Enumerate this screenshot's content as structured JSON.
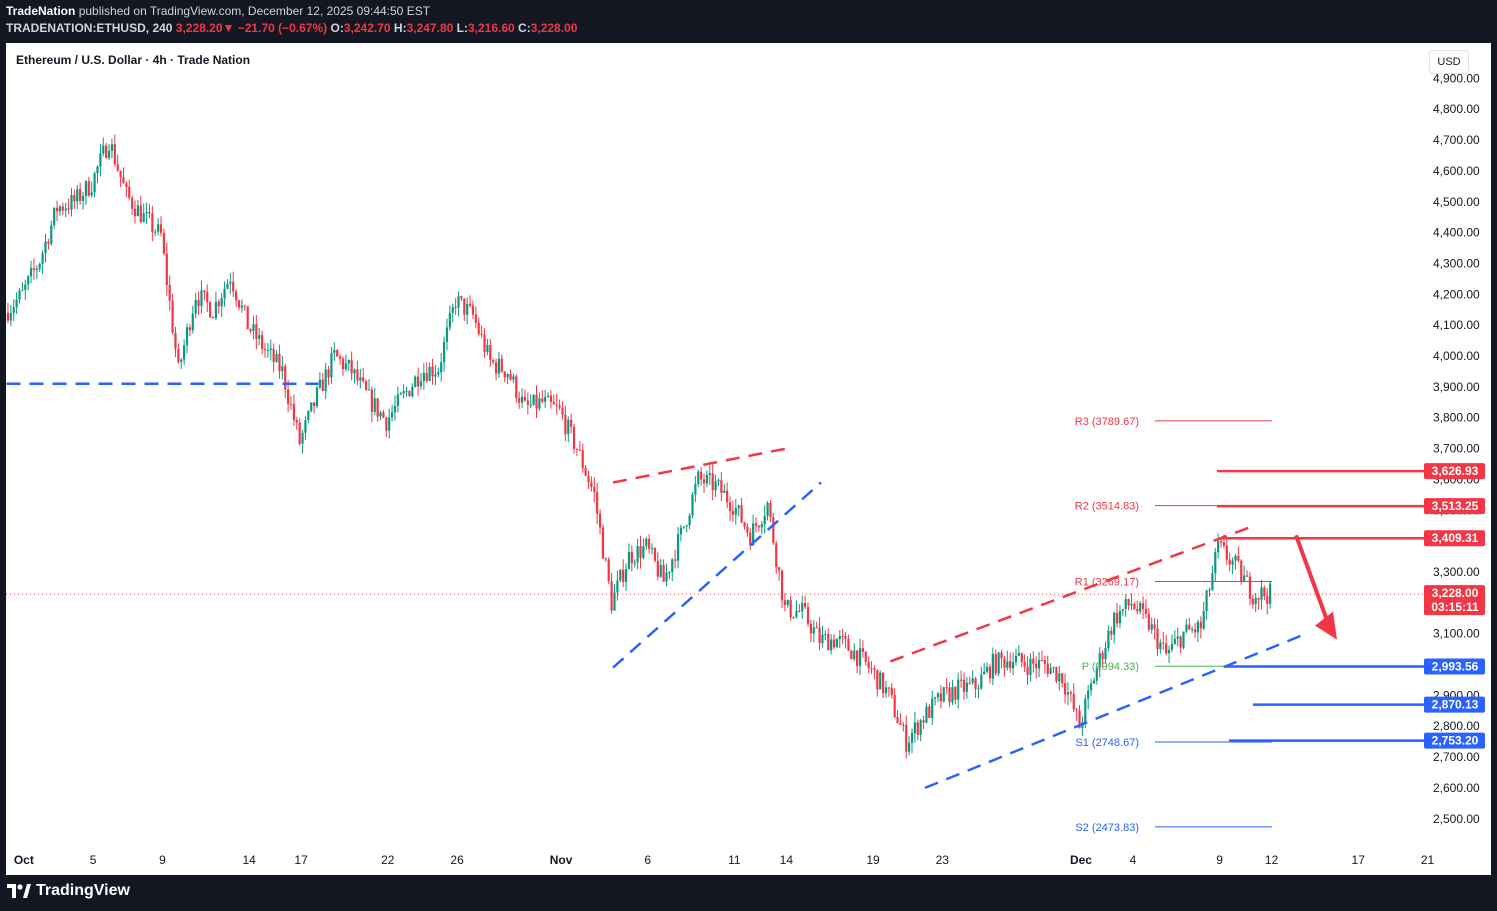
{
  "header": {
    "publisher": "TradeNation",
    "published_on": " published on TradingView.com, December 12, 2025 09:44:50 EST",
    "symbol_tf": "TRADENATION:ETHUSD, 240 ",
    "last": "3,228.20",
    "change": "−21.70 (−0.67%)",
    "o_label": "O:",
    "o": "3,242.70",
    "h_label": "H:",
    "h": "3,247.80",
    "l_label": "L:",
    "l": "3,216.60",
    "c_label": "C:",
    "c": "3,228.00"
  },
  "chart_title": "Ethereum / U.S. Dollar · 4h · Trade Nation",
  "currency_button": "USD",
  "brand": "TradingView",
  "colors": {
    "up": "#089981",
    "down": "#f23645",
    "bear_line": "#f23645",
    "bull_line": "#2962ff",
    "pivot_res": "#f23645",
    "pivot_sup": "#2962ff",
    "pivot_p": "#4caf50",
    "last_price": "#f23645",
    "arrow": "#f23645"
  },
  "chart_data": {
    "type": "candlestick",
    "symbol": "ETHUSD",
    "interval": "4h",
    "ylim": [
      2450,
      4950
    ],
    "y_ticks": [
      "2,500.00",
      "2,600.00",
      "2,700.00",
      "2,800.00",
      "2,900.00",
      "3,000.00",
      "3,100.00",
      "3,200.00",
      "3,300.00",
      "3,400.00",
      "3,500.00",
      "3,600.00",
      "3,700.00",
      "3,800.00",
      "3,900.00",
      "4,000.00",
      "4,100.00",
      "4,200.00",
      "4,300.00",
      "4,400.00",
      "4,500.00",
      "4,600.00",
      "4,700.00",
      "4,800.00",
      "4,900.00"
    ],
    "x_ticks": [
      {
        "label": "Oct",
        "date": "2025-10-01",
        "bold": true
      },
      {
        "label": "5",
        "date": "2025-10-05"
      },
      {
        "label": "9",
        "date": "2025-10-09"
      },
      {
        "label": "14",
        "date": "2025-10-14"
      },
      {
        "label": "17",
        "date": "2025-10-17"
      },
      {
        "label": "22",
        "date": "2025-10-22"
      },
      {
        "label": "26",
        "date": "2025-10-26"
      },
      {
        "label": "Nov",
        "date": "2025-11-01",
        "bold": true
      },
      {
        "label": "6",
        "date": "2025-11-06"
      },
      {
        "label": "11",
        "date": "2025-11-11"
      },
      {
        "label": "14",
        "date": "2025-11-14"
      },
      {
        "label": "19",
        "date": "2025-11-19"
      },
      {
        "label": "23",
        "date": "2025-11-23"
      },
      {
        "label": "Dec",
        "date": "2025-12-01",
        "bold": true
      },
      {
        "label": "4",
        "date": "2025-12-04"
      },
      {
        "label": "9",
        "date": "2025-12-09"
      },
      {
        "label": "12",
        "date": "2025-12-12"
      },
      {
        "label": "17",
        "date": "2025-12-17"
      },
      {
        "label": "21",
        "date": "2025-12-21"
      }
    ],
    "price_path": [
      [
        "2025-09-30",
        4140
      ],
      [
        "2025-10-01",
        4200
      ],
      [
        "2025-10-02",
        4310
      ],
      [
        "2025-10-03",
        4480
      ],
      [
        "2025-10-04",
        4500
      ],
      [
        "2025-10-05",
        4560
      ],
      [
        "2025-10-06",
        4700
      ],
      [
        "2025-10-07",
        4520
      ],
      [
        "2025-10-08",
        4450
      ],
      [
        "2025-10-09",
        4390
      ],
      [
        "2025-10-10",
        3950
      ],
      [
        "2025-10-11",
        4200
      ],
      [
        "2025-10-12",
        4150
      ],
      [
        "2025-10-13",
        4260
      ],
      [
        "2025-10-14",
        4100
      ],
      [
        "2025-10-15",
        4020
      ],
      [
        "2025-10-16",
        3950
      ],
      [
        "2025-10-17",
        3720
      ],
      [
        "2025-10-18",
        3870
      ],
      [
        "2025-10-19",
        4000
      ],
      [
        "2025-10-20",
        3950
      ],
      [
        "2025-10-21",
        3860
      ],
      [
        "2025-10-22",
        3790
      ],
      [
        "2025-10-23",
        3870
      ],
      [
        "2025-10-24",
        3950
      ],
      [
        "2025-10-25",
        3960
      ],
      [
        "2025-10-26",
        4180
      ],
      [
        "2025-10-27",
        4130
      ],
      [
        "2025-10-28",
        3980
      ],
      [
        "2025-10-29",
        3950
      ],
      [
        "2025-10-30",
        3830
      ],
      [
        "2025-10-31",
        3850
      ],
      [
        "2025-11-01",
        3820
      ],
      [
        "2025-11-02",
        3700
      ],
      [
        "2025-11-03",
        3550
      ],
      [
        "2025-11-04",
        3200
      ],
      [
        "2025-11-05",
        3350
      ],
      [
        "2025-11-06",
        3380
      ],
      [
        "2025-11-07",
        3270
      ],
      [
        "2025-11-08",
        3420
      ],
      [
        "2025-11-09",
        3600
      ],
      [
        "2025-11-10",
        3580
      ],
      [
        "2025-11-11",
        3520
      ],
      [
        "2025-11-12",
        3420
      ],
      [
        "2025-11-13",
        3520
      ],
      [
        "2025-11-14",
        3180
      ],
      [
        "2025-11-15",
        3170
      ],
      [
        "2025-11-16",
        3080
      ],
      [
        "2025-11-17",
        3080
      ],
      [
        "2025-11-18",
        3040
      ],
      [
        "2025-11-19",
        2980
      ],
      [
        "2025-11-20",
        2900
      ],
      [
        "2025-11-21",
        2750
      ],
      [
        "2025-11-22",
        2830
      ],
      [
        "2025-11-23",
        2890
      ],
      [
        "2025-11-24",
        2920
      ],
      [
        "2025-11-25",
        2930
      ],
      [
        "2025-11-26",
        3000
      ],
      [
        "2025-11-27",
        3020
      ],
      [
        "2025-11-28",
        3000
      ],
      [
        "2025-11-29",
        3000
      ],
      [
        "2025-11-30",
        2960
      ],
      [
        "2025-12-01",
        2800
      ],
      [
        "2025-12-02",
        2990
      ],
      [
        "2025-12-03",
        3150
      ],
      [
        "2025-12-04",
        3200
      ],
      [
        "2025-12-05",
        3130
      ],
      [
        "2025-12-06",
        3030
      ],
      [
        "2025-12-07",
        3100
      ],
      [
        "2025-12-08",
        3120
      ],
      [
        "2025-12-09",
        3380
      ],
      [
        "2025-12-10",
        3320
      ],
      [
        "2025-12-11",
        3230
      ],
      [
        "2025-12-12",
        3228
      ]
    ],
    "last_price": 3228.0,
    "last_price_label": "3,228.00",
    "countdown": "03:15:11",
    "pivots": [
      {
        "label": "R3 (3789.67)",
        "value": 3789.67,
        "kind": "res"
      },
      {
        "label": "R2 (3514.83)",
        "value": 3514.83,
        "kind": "res"
      },
      {
        "label": "R1 (3269.17)",
        "value": 3269.17,
        "kind": "res"
      },
      {
        "label": "P (2994.33)",
        "value": 2994.33,
        "kind": "p"
      },
      {
        "label": "S1 (2748.67)",
        "value": 2748.67,
        "kind": "sup"
      },
      {
        "label": "S2 (2473.83)",
        "value": 2473.83,
        "kind": "sup"
      }
    ],
    "resistance_levels": [
      {
        "value": 3626.93,
        "label": "3,626.93"
      },
      {
        "value": 3513.25,
        "label": "3,513.25"
      },
      {
        "value": 3409.31,
        "label": "3,409.31"
      }
    ],
    "support_levels": [
      {
        "value": 2993.56,
        "label": "2,993.56"
      },
      {
        "value": 2870.13,
        "label": "2,870.13"
      },
      {
        "value": 2753.2,
        "label": "2,753.20"
      }
    ],
    "horizontal_dashed": {
      "value": 3910,
      "from": "2025-09-30",
      "to": "2025-10-18"
    },
    "trendlines": [
      {
        "color": "bear",
        "from": [
          "2025-11-04",
          3590
        ],
        "to": [
          "2025-11-14",
          3700
        ]
      },
      {
        "color": "bull",
        "from": [
          "2025-11-04",
          2990
        ],
        "to": [
          "2025-11-16",
          3590
        ]
      },
      {
        "color": "bear",
        "from": [
          "2025-11-20",
          3010
        ],
        "to": [
          "2025-12-11",
          3450
        ]
      },
      {
        "color": "bull",
        "from": [
          "2025-11-22",
          2600
        ],
        "to": [
          "2025-12-14",
          3100
        ]
      }
    ],
    "projection_arrow": {
      "from": [
        "2025-12-13",
        3380
      ],
      "to": [
        "2025-12-14",
        3100
      ]
    }
  }
}
